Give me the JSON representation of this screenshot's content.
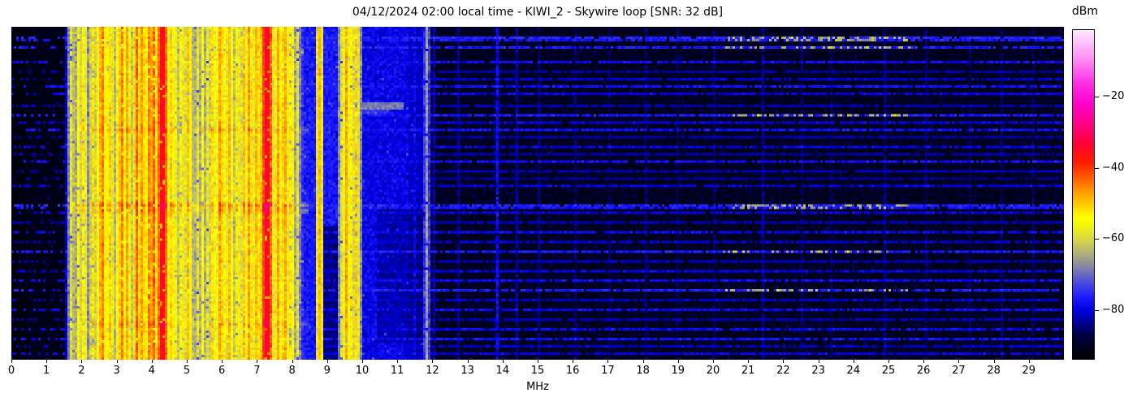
{
  "title": "04/12/2024 02:00 local time - KIWI_2 - Skywire loop [SNR: 32 dB]",
  "x_axis": {
    "label": "MHz",
    "min": 0,
    "max": 30,
    "ticks": [
      0,
      1,
      2,
      3,
      4,
      5,
      6,
      7,
      8,
      9,
      10,
      11,
      12,
      13,
      14,
      15,
      16,
      17,
      18,
      19,
      20,
      21,
      22,
      23,
      24,
      25,
      26,
      27,
      28,
      29
    ]
  },
  "colorbar": {
    "label": "dBm",
    "vmin": -94,
    "vmax": -1,
    "ticks": [
      -20,
      -40,
      -60,
      -80
    ],
    "tick_labels": [
      "−20",
      "−40",
      "−60",
      "−80"
    ],
    "gradient": [
      {
        "t": 0.0,
        "color": "#000000"
      },
      {
        "t": 0.065,
        "color": "#000038"
      },
      {
        "t": 0.118,
        "color": "#0000a8"
      },
      {
        "t": 0.151,
        "color": "#0000e0"
      },
      {
        "t": 0.183,
        "color": "#1818ff"
      },
      {
        "t": 0.226,
        "color": "#4444e4"
      },
      {
        "t": 0.269,
        "color": "#7878b4"
      },
      {
        "t": 0.312,
        "color": "#a8a882"
      },
      {
        "t": 0.355,
        "color": "#d0d050"
      },
      {
        "t": 0.398,
        "color": "#f0f018"
      },
      {
        "t": 0.43,
        "color": "#ffff00"
      },
      {
        "t": 0.473,
        "color": "#ffc800"
      },
      {
        "t": 0.516,
        "color": "#ff9000"
      },
      {
        "t": 0.559,
        "color": "#ff5000"
      },
      {
        "t": 0.602,
        "color": "#ff1800"
      },
      {
        "t": 0.656,
        "color": "#ff0038"
      },
      {
        "t": 0.71,
        "color": "#ff0080"
      },
      {
        "t": 0.774,
        "color": "#ff00c8"
      },
      {
        "t": 0.839,
        "color": "#ff30e8"
      },
      {
        "t": 0.914,
        "color": "#ff90f4"
      },
      {
        "t": 1.0,
        "color": "#ffe8ff"
      }
    ]
  },
  "chart_data": {
    "type": "heatmap",
    "subtype": "hf-spectrogram-waterfall",
    "title": "04/12/2024 02:00 local time - KIWI_2 - Skywire loop [SNR: 32 dB]",
    "xlabel": "MHz",
    "x_range": [
      0,
      30
    ],
    "value_unit": "dBm",
    "value_range": [
      -94,
      -1
    ],
    "time_axis": "vertical, unlabeled",
    "grid_cols": 432,
    "grid_rows": 137,
    "seed": 1337,
    "band_format": [
      "freq_start_mhz",
      "freq_end_mhz",
      "noise_floor_dbm",
      "sigma_db",
      "speckle_prob",
      "speckle_amp_db"
    ],
    "noise_bands": [
      [
        0.0,
        0.4,
        -92.5,
        1.2,
        0.02,
        4
      ],
      [
        0.4,
        1.55,
        -91.5,
        1.7,
        0.05,
        6
      ],
      [
        1.55,
        1.78,
        -82.0,
        3.0,
        0.03,
        8
      ],
      [
        1.78,
        8.35,
        -75.5,
        3.5,
        0.035,
        13
      ],
      [
        8.35,
        9.95,
        -77.5,
        3.0,
        0.02,
        8
      ],
      [
        9.95,
        11.3,
        -79.5,
        3.0,
        0.02,
        7
      ],
      [
        11.3,
        11.97,
        -81.5,
        2.5,
        0.02,
        6
      ],
      [
        11.97,
        30.0,
        -90.5,
        1.8,
        0.05,
        5
      ]
    ],
    "carrier_format": [
      "freq_mhz",
      "peak_dbm",
      "width_cells_optional"
    ],
    "carriers": [
      [
        1.71,
        -59
      ],
      [
        1.8,
        -63
      ],
      [
        1.88,
        -56
      ],
      [
        1.97,
        -61
      ],
      [
        2.06,
        -53
      ],
      [
        2.15,
        -58
      ],
      [
        2.27,
        -64,
        2
      ],
      [
        2.36,
        -52
      ],
      [
        2.45,
        -56
      ],
      [
        2.53,
        -49
      ],
      [
        2.62,
        -45
      ],
      [
        2.71,
        -55
      ],
      [
        2.8,
        -51
      ],
      [
        2.9,
        -58
      ],
      [
        3.0,
        -54
      ],
      [
        3.09,
        -50
      ],
      [
        3.19,
        -45
      ],
      [
        3.28,
        -48
      ],
      [
        3.38,
        -53
      ],
      [
        3.49,
        -56
      ],
      [
        3.61,
        -43
      ],
      [
        3.7,
        -47
      ],
      [
        3.8,
        -51
      ],
      [
        3.9,
        -45
      ],
      [
        4.0,
        -48
      ],
      [
        4.08,
        -43
      ],
      [
        4.17,
        -46
      ],
      [
        4.26,
        -35,
        2
      ],
      [
        4.34,
        -41
      ],
      [
        4.43,
        -45
      ],
      [
        4.52,
        -51
      ],
      [
        4.61,
        -54
      ],
      [
        4.71,
        -57
      ],
      [
        4.81,
        -53
      ],
      [
        4.9,
        -58
      ],
      [
        5.0,
        -50
      ],
      [
        5.1,
        -56
      ],
      [
        5.17,
        -64,
        2
      ],
      [
        5.31,
        -59
      ],
      [
        5.46,
        -55
      ],
      [
        5.6,
        -58
      ],
      [
        5.7,
        -52
      ],
      [
        5.8,
        -56
      ],
      [
        5.91,
        -47
      ],
      [
        6.0,
        -51
      ],
      [
        6.1,
        -54
      ],
      [
        6.19,
        -49
      ],
      [
        6.3,
        -56
      ],
      [
        6.41,
        -53
      ],
      [
        6.52,
        -58
      ],
      [
        6.63,
        -50
      ],
      [
        6.74,
        -47
      ],
      [
        6.85,
        -52
      ],
      [
        6.96,
        -49
      ],
      [
        7.06,
        -52
      ],
      [
        7.18,
        -41
      ],
      [
        7.29,
        -34,
        2
      ],
      [
        7.4,
        -49
      ],
      [
        7.5,
        -53
      ],
      [
        7.61,
        -47
      ],
      [
        7.71,
        -51
      ],
      [
        7.82,
        -48
      ],
      [
        7.93,
        -53
      ],
      [
        8.04,
        -56
      ],
      [
        8.15,
        -59
      ],
      [
        8.77,
        -49
      ],
      [
        9.42,
        -59
      ],
      [
        9.58,
        -47
      ],
      [
        9.68,
        -53
      ],
      [
        9.8,
        -51
      ],
      [
        9.93,
        -59
      ],
      [
        11.48,
        -80
      ],
      [
        11.83,
        -66
      ],
      [
        12.05,
        -83
      ],
      [
        12.75,
        -84
      ],
      [
        13.87,
        -79
      ],
      [
        14.4,
        -83
      ],
      [
        15.02,
        -85
      ],
      [
        16.1,
        -86
      ],
      [
        17.05,
        -87
      ],
      [
        18.12,
        -86
      ],
      [
        19.0,
        -87
      ],
      [
        20.02,
        -86
      ],
      [
        21.45,
        -84
      ],
      [
        22.5,
        -86
      ],
      [
        23.4,
        -87
      ],
      [
        24.9,
        -85
      ],
      [
        26.05,
        -86
      ],
      [
        27.3,
        -87
      ],
      [
        28.2,
        -86
      ],
      [
        29.1,
        -87
      ]
    ],
    "impulse_row_format": [
      "time_fraction",
      "dbm",
      "hot_segments_21_25MHz",
      "two_rows_wide"
    ],
    "impulse_rows": [
      [
        0.03,
        -76,
        true,
        true
      ],
      [
        0.058,
        -77,
        true,
        false
      ],
      [
        0.1,
        -79,
        false,
        false
      ],
      [
        0.128,
        -83,
        false,
        false
      ],
      [
        0.152,
        -81,
        false,
        false
      ],
      [
        0.178,
        -78,
        false,
        false
      ],
      [
        0.196,
        -80,
        false,
        false
      ],
      [
        0.23,
        -82,
        false,
        false
      ],
      [
        0.262,
        -77,
        true,
        false
      ],
      [
        0.282,
        -80,
        false,
        false
      ],
      [
        0.308,
        -78,
        false,
        false
      ],
      [
        0.33,
        -83,
        false,
        false
      ],
      [
        0.356,
        -80,
        false,
        false
      ],
      [
        0.382,
        -83,
        false,
        false
      ],
      [
        0.402,
        -78,
        false,
        false
      ],
      [
        0.428,
        -82,
        false,
        false
      ],
      [
        0.452,
        -84,
        false,
        false
      ],
      [
        0.476,
        -80,
        false,
        false
      ],
      [
        0.532,
        -76,
        true,
        true
      ],
      [
        0.558,
        -80,
        false,
        false
      ],
      [
        0.586,
        -82,
        false,
        false
      ],
      [
        0.614,
        -79,
        false,
        false
      ],
      [
        0.644,
        -81,
        false,
        false
      ],
      [
        0.672,
        -77,
        true,
        false
      ],
      [
        0.702,
        -82,
        false,
        false
      ],
      [
        0.73,
        -80,
        false,
        false
      ],
      [
        0.758,
        -79,
        false,
        false
      ],
      [
        0.788,
        -77,
        true,
        false
      ],
      [
        0.82,
        -81,
        false,
        false
      ],
      [
        0.848,
        -79,
        false,
        false
      ],
      [
        0.876,
        -82,
        false,
        false
      ],
      [
        0.904,
        -79,
        false,
        false
      ],
      [
        0.932,
        -78,
        false,
        false
      ],
      [
        0.958,
        -81,
        false,
        false
      ],
      [
        0.98,
        -80,
        false,
        false
      ]
    ],
    "enhancement_rows": [
      {
        "t": 0.308,
        "boost": 6
      },
      {
        "t": 0.535,
        "boost": 10
      },
      {
        "t": 0.551,
        "boost": 7
      },
      {
        "t": 0.89,
        "boost": 5
      }
    ],
    "features": [
      {
        "f": [
          9.95,
          11.15
        ],
        "t": [
          0.225,
          0.248
        ],
        "dbm": -69
      },
      {
        "f": [
          10.0,
          10.75
        ],
        "t": [
          0.248,
          0.263
        ],
        "dbm": -74
      }
    ],
    "dark_patches": [
      {
        "f": [
          8.8,
          9.5
        ],
        "t": [
          0.6,
          1.0
        ],
        "delta": -7
      },
      {
        "f": [
          10.4,
          11.95
        ],
        "t": [
          0.55,
          0.95
        ],
        "delta": -3
      },
      {
        "f": [
          5.15,
          5.85
        ],
        "t": [
          0.05,
          0.4
        ],
        "delta": -3
      }
    ]
  }
}
